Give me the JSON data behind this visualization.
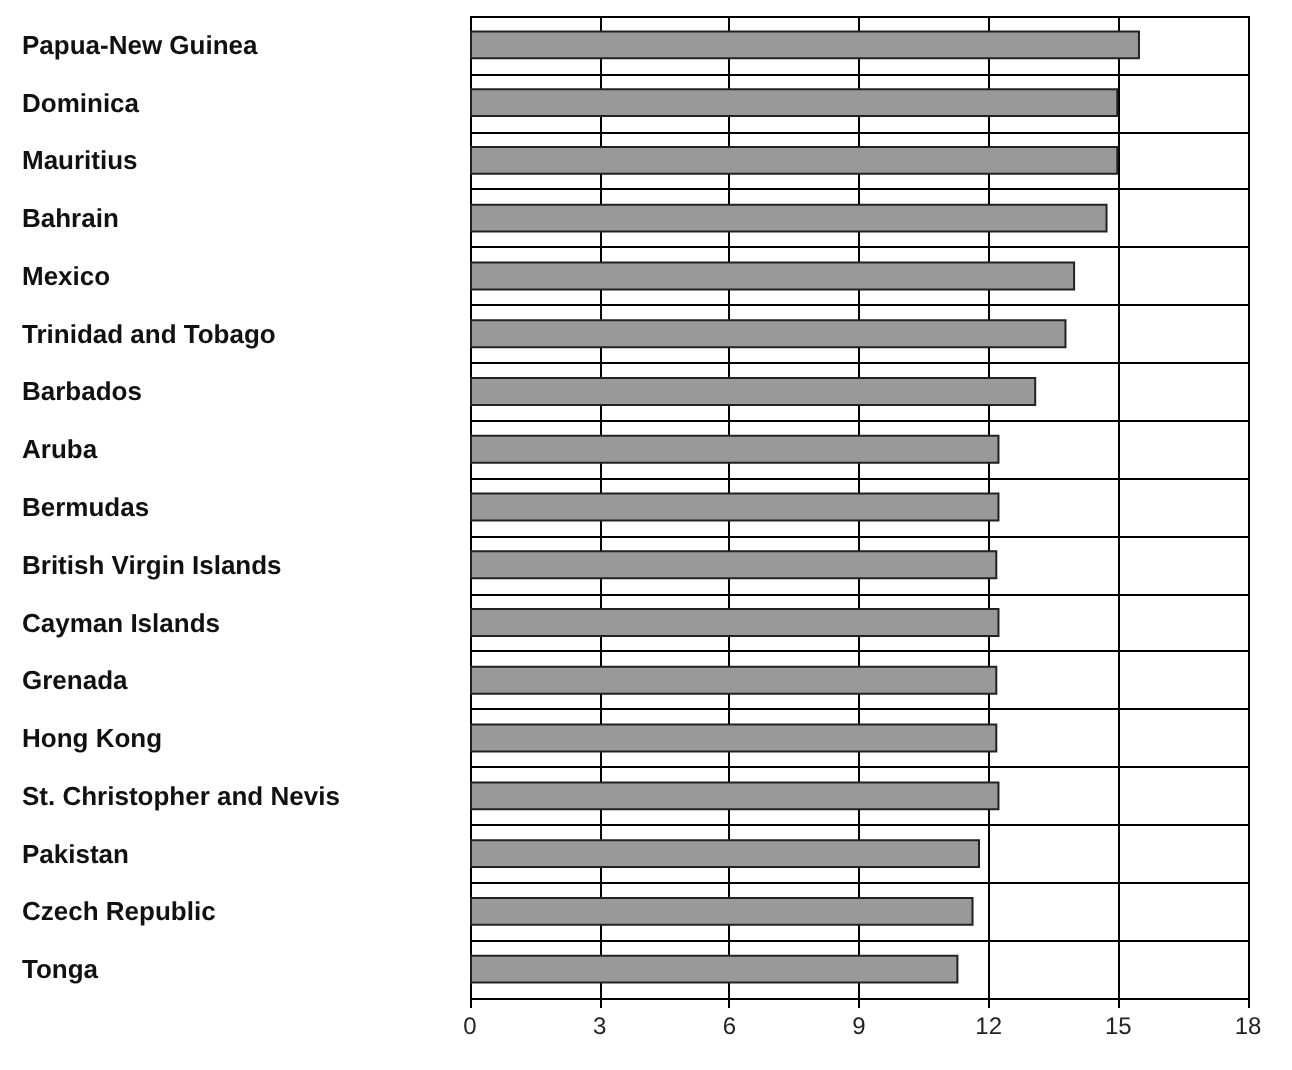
{
  "chart_data": {
    "type": "bar",
    "orientation": "horizontal",
    "categories": [
      "Papua-New Guinea",
      "Dominica",
      "Mauritius",
      "Bahrain",
      "Mexico",
      "Trinidad and Tobago",
      "Barbados",
      "Aruba",
      "Bermudas",
      "British Virgin Islands",
      "Cayman Islands",
      "Grenada",
      "Hong Kong",
      "St. Christopher and Nevis",
      "Pakistan",
      "Czech Republic",
      "Tonga"
    ],
    "values": [
      15.5,
      15,
      15,
      14.75,
      14,
      13.8,
      13.1,
      12.25,
      12.25,
      12.2,
      12.25,
      12.2,
      12.2,
      12.25,
      11.8,
      11.65,
      11.3
    ],
    "color": "#999999",
    "xlim": [
      0,
      18
    ],
    "xticks": [
      0,
      3,
      6,
      9,
      12,
      15,
      18
    ],
    "grid": true
  }
}
